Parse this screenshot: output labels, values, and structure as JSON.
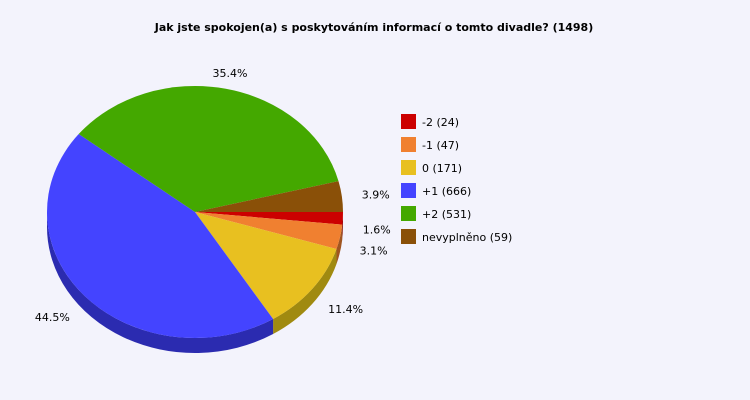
{
  "chart_data": {
    "type": "pie",
    "title": "Jak jste spokojen(a) s poskytováním informací o tomto divadle? (1498)",
    "legend_position": "right",
    "slices": [
      {
        "legend": "-2 (24)",
        "count": 24,
        "percent": 1.6,
        "percent_label": "1.6%",
        "color": "#cc0000",
        "side_color": "#800000"
      },
      {
        "legend": "-1 (47)",
        "count": 47,
        "percent": 3.1,
        "percent_label": "3.1%",
        "color": "#f08030",
        "side_color": "#a05520"
      },
      {
        "legend": "0 (171)",
        "count": 171,
        "percent": 11.4,
        "percent_label": "11.4%",
        "color": "#e8c020",
        "side_color": "#a08a10"
      },
      {
        "legend": "+1 (666)",
        "count": 666,
        "percent": 44.5,
        "percent_label": "44.5%",
        "color": "#4444ff",
        "side_color": "#2b2bb0"
      },
      {
        "legend": "+2 (531)",
        "count": 531,
        "percent": 35.4,
        "percent_label": "35.4%",
        "color": "#44a800",
        "side_color": "#2e7000"
      },
      {
        "legend": "nevyplněno (59)",
        "count": 59,
        "percent": 3.9,
        "percent_label": "3.9%",
        "color": "#8a5008",
        "side_color": "#5a3404"
      }
    ]
  }
}
